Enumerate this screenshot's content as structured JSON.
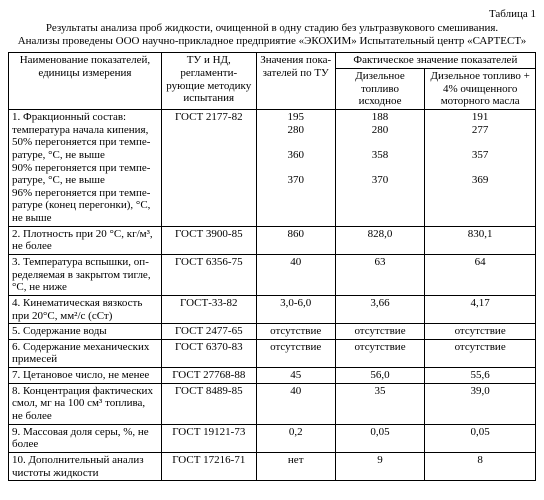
{
  "table_label": "Таблица 1",
  "title_line1": "Результаты анализа проб жидкости, очищенной в одну стадию без ультразвукового смешивания.",
  "title_line2": "Анализы проведены ООО научно-прикладное предприятие «ЭКОХИМ» Испытательный центр «САРТЕСТ»",
  "headers": {
    "col1": "Наименование показателей, единицы измерения",
    "col2": "ТУ и НД, регламенти­рующие методику испытания",
    "col3": "Значения пока­зателей по ТУ",
    "col4": "Фактическое значение показателей",
    "col4a": "Дизельное топливо исходное",
    "col4b": "Дизельное топ­ливо + 4% очи­щенного мотор­ного масла"
  },
  "rows": [
    {
      "name": "1. Фракционный состав: температура начала кипения, 50% перегоняется при темпе­ратуре, °С, не выше\n90% перегоняется при темпе­ратуре, °С, не выше\n96% перегоняется при темпе­ратуре (конец перегонки), °С, не выше",
      "std": "ГОСТ 2177-82",
      "tu": "195\n280\n\n360\n\n370",
      "fa": "188\n280\n\n358\n\n370",
      "fb": "191\n277\n\n357\n\n369"
    },
    {
      "name": "2. Плотность при 20 °С, кг/м³, не более",
      "std": "ГОСТ 3900-85",
      "tu": "860",
      "fa": "828,0",
      "fb": "830,1"
    },
    {
      "name": "3. Температура вспышки, оп­ределяемая в закрытом тигле, °С, не ниже",
      "std": "ГОСТ 6356-75",
      "tu": "40",
      "fa": "63",
      "fb": "64"
    },
    {
      "name": "4. Кинематическая вязкость при 20°С, мм²/с (сСт)",
      "std": "ГОСТ-33-82",
      "tu": "3,0-6,0",
      "fa": "3,66",
      "fb": "4,17"
    },
    {
      "name": "5. Содержание воды",
      "std": "ГОСТ 2477-65",
      "tu": "отсутствие",
      "fa": "отсутствие",
      "fb": "отсутствие"
    },
    {
      "name": "6. Содержание механических примесей",
      "std": "ГОСТ 6370-83",
      "tu": "отсутствие",
      "fa": "отсутствие",
      "fb": "отсутствие"
    },
    {
      "name": "7. Цетановое число, не менее",
      "std": "ГОСТ 27768-88",
      "tu": "45",
      "fa": "56,0",
      "fb": "55,6"
    },
    {
      "name": "8. Концентрация фактических смол, мг на 100 см³ топлива, не более",
      "std": "ГОСТ 8489-85",
      "tu": "40",
      "fa": "35",
      "fb": "39,0"
    },
    {
      "name": "9. Массовая доля серы, %, не более",
      "std": "ГОСТ 19121-73",
      "tu": "0,2",
      "fa": "0,05",
      "fb": "0,05"
    },
    {
      "name": "10. Дополнительный анализ чистоты жидкости",
      "std": "ГОСТ 17216-71",
      "tu": "нет",
      "fa": "9",
      "fb": "8"
    }
  ]
}
